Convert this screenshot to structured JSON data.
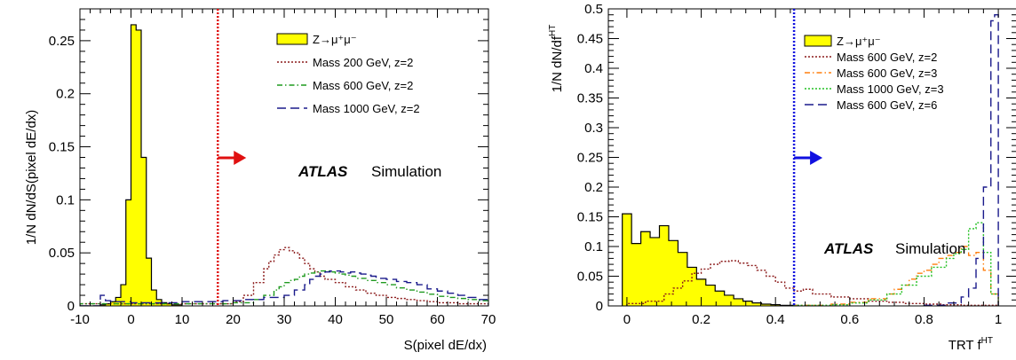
{
  "chart_data": [
    {
      "type": "histogram",
      "xlabel": "S(pixel dE/dx)",
      "ylabel": "1/N dN/dS(pixel dE/dx)",
      "xlim": [
        -10,
        70
      ],
      "ylim": [
        0,
        0.28
      ],
      "xticks": [
        -10,
        0,
        10,
        20,
        30,
        40,
        50,
        60,
        70
      ],
      "xtick_labels": [
        "-10",
        "0",
        "10",
        "20",
        "30",
        "40",
        "50",
        "60",
        "70"
      ],
      "yticks": [
        0,
        0.05,
        0.1,
        0.15,
        0.2,
        0.25
      ],
      "ytick_labels": [
        "0",
        "0.05",
        "0.1",
        "0.15",
        "0.2",
        "0.25"
      ],
      "cut_line": {
        "x": 17,
        "color": "#e01010",
        "arrow": "right"
      },
      "atlas_label": "ATLAS",
      "atlas_sub": "Simulation",
      "series": [
        {
          "name": "Z→μ⁺μ⁻",
          "style": "filled",
          "color": "#ffff00",
          "bin_edges": [
            -10,
            -9,
            -8,
            -7,
            -6,
            -5,
            -4,
            -3,
            -2,
            -1,
            0,
            1,
            2,
            3,
            4,
            5,
            6,
            7,
            8,
            9,
            10
          ],
          "values": [
            0,
            0,
            0,
            0,
            0.001,
            0.002,
            0.004,
            0.008,
            0.02,
            0.1,
            0.265,
            0.26,
            0.14,
            0.045,
            0.015,
            0.006,
            0.003,
            0.002,
            0.001,
            0.001
          ]
        },
        {
          "name": "Mass 200 GeV, z=2",
          "style": "dotted",
          "color": "#8b1a1a",
          "bin_edges": [
            -10,
            0,
            10,
            18,
            20,
            22,
            24,
            26,
            27,
            28,
            29,
            30,
            31,
            32,
            33,
            34,
            35,
            36,
            37,
            38,
            40,
            42,
            44,
            46,
            48,
            50,
            52,
            54,
            56,
            58,
            60,
            62,
            64,
            66,
            68,
            70
          ],
          "values": [
            0.002,
            0.002,
            0.002,
            0.002,
            0.004,
            0.01,
            0.022,
            0.035,
            0.042,
            0.048,
            0.053,
            0.055,
            0.052,
            0.05,
            0.045,
            0.04,
            0.035,
            0.032,
            0.028,
            0.025,
            0.022,
            0.018,
            0.015,
            0.012,
            0.01,
            0.008,
            0.007,
            0.006,
            0.005,
            0.004,
            0.003,
            0.003,
            0.002,
            0.002,
            0.002
          ]
        },
        {
          "name": "Mass 600 GeV, z=2",
          "style": "dashdot",
          "color": "#1f9a1f",
          "bin_edges": [
            -10,
            0,
            10,
            18,
            20,
            24,
            26,
            28,
            29,
            30,
            31,
            32,
            33,
            34,
            35,
            36,
            37,
            38,
            39,
            40,
            41,
            42,
            43,
            44,
            46,
            48,
            50,
            52,
            54,
            56,
            58,
            60,
            62,
            64,
            66,
            68,
            70
          ],
          "values": [
            0.002,
            0.002,
            0.002,
            0.002,
            0.003,
            0.006,
            0.01,
            0.015,
            0.018,
            0.022,
            0.024,
            0.025,
            0.028,
            0.03,
            0.031,
            0.032,
            0.033,
            0.033,
            0.032,
            0.031,
            0.03,
            0.029,
            0.028,
            0.026,
            0.024,
            0.022,
            0.02,
            0.017,
            0.015,
            0.013,
            0.011,
            0.009,
            0.008,
            0.007,
            0.006,
            0.005
          ]
        },
        {
          "name": "Mass 1000 GeV, z=2",
          "style": "longdash",
          "color": "#1a1a8b",
          "bin_edges": [
            -10,
            -6,
            -5,
            -4,
            0,
            10,
            18,
            22,
            26,
            30,
            32,
            34,
            35,
            36,
            37,
            38,
            39,
            40,
            41,
            42,
            43,
            44,
            45,
            46,
            47,
            48,
            50,
            52,
            54,
            56,
            58,
            60,
            62,
            64,
            66,
            68,
            70
          ],
          "values": [
            0,
            0.01,
            0.005,
            0.004,
            0.003,
            0.004,
            0.005,
            0.006,
            0.008,
            0.01,
            0.015,
            0.02,
            0.025,
            0.028,
            0.03,
            0.032,
            0.033,
            0.033,
            0.032,
            0.031,
            0.032,
            0.031,
            0.03,
            0.029,
            0.028,
            0.026,
            0.025,
            0.023,
            0.022,
            0.02,
            0.016,
            0.014,
            0.012,
            0.01,
            0.008,
            0.006
          ]
        }
      ]
    },
    {
      "type": "histogram",
      "xlabel": "TRT f",
      "xlabel_sup": "HT",
      "ylabel": "1/N dN/df",
      "ylabel_sup": "HT",
      "xlim": [
        -0.05,
        1.05
      ],
      "ylim": [
        0,
        0.5
      ],
      "xticks": [
        0,
        0.2,
        0.4,
        0.6,
        0.8,
        1
      ],
      "xtick_labels": [
        "0",
        "0.2",
        "0.4",
        "0.6",
        "0.8",
        "1"
      ],
      "yticks": [
        0,
        0.05,
        0.1,
        0.15,
        0.2,
        0.25,
        0.3,
        0.35,
        0.4,
        0.45,
        0.5
      ],
      "ytick_labels": [
        "0",
        "0.05",
        "0.1",
        "0.15",
        "0.2",
        "0.25",
        "0.3",
        "0.35",
        "0.4",
        "0.45",
        "0.5"
      ],
      "cut_line": {
        "x": 0.45,
        "color": "#1010e0",
        "arrow": "right"
      },
      "atlas_label": "ATLAS",
      "atlas_sub": "Simulation",
      "series": [
        {
          "name": "Z→μ⁺μ⁻",
          "style": "filled",
          "color": "#ffff00",
          "bin_edges": [
            -0.0125,
            0.0125,
            0.0375,
            0.0625,
            0.0875,
            0.1125,
            0.1375,
            0.1625,
            0.1875,
            0.2125,
            0.2375,
            0.2625,
            0.2875,
            0.3125,
            0.3375,
            0.3625,
            0.3875,
            0.4125,
            0.4375,
            0.4625
          ],
          "values": [
            0.155,
            0.105,
            0.125,
            0.115,
            0.135,
            0.11,
            0.09,
            0.065,
            0.045,
            0.035,
            0.025,
            0.018,
            0.012,
            0.008,
            0.005,
            0.003,
            0.002,
            0.001,
            0.001
          ]
        },
        {
          "name": "Mass 600 GeV, z=2",
          "style": "dotted",
          "color": "#8b1a1a",
          "bin_edges": [
            0.0,
            0.05,
            0.1,
            0.125,
            0.15,
            0.175,
            0.2,
            0.225,
            0.25,
            0.275,
            0.3,
            0.325,
            0.35,
            0.375,
            0.4,
            0.425,
            0.45,
            0.475,
            0.5,
            0.55,
            0.6,
            0.65,
            0.7,
            0.75,
            0.8,
            0.85,
            0.9,
            0.95,
            1.0
          ],
          "values": [
            0.004,
            0.008,
            0.02,
            0.03,
            0.042,
            0.055,
            0.062,
            0.07,
            0.075,
            0.076,
            0.072,
            0.068,
            0.06,
            0.05,
            0.04,
            0.03,
            0.025,
            0.028,
            0.02,
            0.015,
            0.012,
            0.008,
            0.006,
            0.004,
            0.003,
            0.002,
            0.001,
            0.001
          ]
        },
        {
          "name": "Mass 600 GeV, z=3",
          "style": "dashdot",
          "color": "#ff7f0e",
          "bin_edges": [
            0.45,
            0.55,
            0.6,
            0.65,
            0.7,
            0.72,
            0.74,
            0.76,
            0.78,
            0.8,
            0.82,
            0.84,
            0.86,
            0.88,
            0.9,
            0.92,
            0.94,
            0.96,
            0.98,
            1.0
          ],
          "values": [
            0.001,
            0.003,
            0.006,
            0.012,
            0.02,
            0.028,
            0.035,
            0.045,
            0.055,
            0.06,
            0.07,
            0.08,
            0.085,
            0.09,
            0.1,
            0.085,
            0.09,
            0.06,
            0.02
          ]
        },
        {
          "name": "Mass 1000 GeV, z=3",
          "style": "dotted",
          "color": "#22c022",
          "bin_edges": [
            0.45,
            0.55,
            0.6,
            0.65,
            0.7,
            0.74,
            0.78,
            0.82,
            0.86,
            0.88,
            0.9,
            0.92,
            0.94,
            0.96,
            0.98,
            1.0
          ],
          "values": [
            0.001,
            0.002,
            0.005,
            0.01,
            0.02,
            0.035,
            0.05,
            0.065,
            0.08,
            0.088,
            0.095,
            0.13,
            0.14,
            0.09,
            0.02
          ]
        },
        {
          "name": "Mass 600 GeV, z=6",
          "style": "longdash",
          "color": "#1a1a8b",
          "bin_edges": [
            0.8,
            0.86,
            0.9,
            0.92,
            0.94,
            0.96,
            0.98,
            0.99,
            1.0
          ],
          "values": [
            0.001,
            0.005,
            0.015,
            0.03,
            0.08,
            0.2,
            0.48,
            0.49
          ]
        }
      ]
    }
  ]
}
